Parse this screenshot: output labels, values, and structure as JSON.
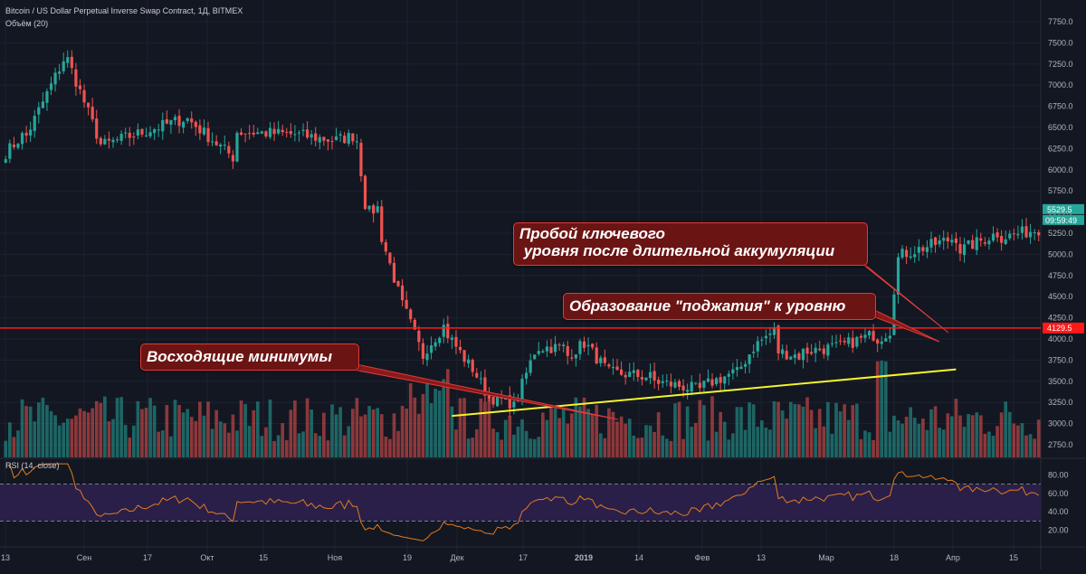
{
  "header": {
    "title": "Bitcoin / US Dollar Perpetual Inverse Swap Contract, 1Д, BITMEX",
    "volume_label": "Объём (20)",
    "rsi_label": "RSI (14, close)"
  },
  "annotations": {
    "breakout": "Пробой ключевого\n уровня после длительной аккумуляции",
    "squeeze": "Образование \"поджатия\" к уровню",
    "higher_lows": "Восходящие минимумы"
  },
  "colors": {
    "up": "#26a69a",
    "down": "#ef5350",
    "level": "#ff1a1a",
    "trend": "#f5f52a",
    "rsi_line": "#e07b1f",
    "rsi_band": "#2a1f48"
  },
  "price_axis": {
    "ticks": [
      "7750.0",
      "7500.0",
      "7250.0",
      "7000.0",
      "6750.0",
      "6500.0",
      "6250.0",
      "6000.0",
      "5750.0",
      "5500.0",
      "5250.0",
      "5000.0",
      "4750.0",
      "4500.0",
      "4250.0",
      "4000.0",
      "3750.0",
      "3500.0",
      "3250.0",
      "3000.0",
      "2750.0"
    ],
    "last_price": "5529.5",
    "countdown": "09:59:49",
    "level_tag": "4129.5"
  },
  "rsi_axis": {
    "ticks": [
      "80.00",
      "60.00",
      "40.00",
      "20.00"
    ]
  },
  "time_axis": [
    "13",
    "Сен",
    "17",
    "Окт",
    "15",
    "Ноя",
    "19",
    "Дек",
    "17",
    "2019",
    "14",
    "Фев",
    "13",
    "Мар",
    "18",
    "Апр",
    "15"
  ],
  "chart_data": {
    "type": "candlestick",
    "ylim": [
      2600,
      7900
    ],
    "key_level": 4129.5,
    "trendline": {
      "from": {
        "date": "Dec 15",
        "price": 3090
      },
      "to": {
        "date": "Apr 12",
        "price": 3640
      }
    },
    "rsi": {
      "ylim": [
        5,
        95
      ],
      "overbought": 70,
      "oversold": 30
    },
    "series": [
      {
        "name": "close",
        "segments": [
          {
            "days": 5,
            "from": 6200,
            "to": 6400
          },
          {
            "days": 10,
            "from": 6400,
            "to": 7300
          },
          {
            "days": 9,
            "from": 7300,
            "to": 6300
          },
          {
            "days": 20,
            "from": 6300,
            "to": 6600
          },
          {
            "days": 12,
            "from": 6600,
            "to": 6150
          },
          {
            "days": 14,
            "from": 6450,
            "to": 6420
          },
          {
            "days": 10,
            "from": 6420,
            "to": 6350
          },
          {
            "days": 5,
            "from": 6350,
            "to": 6400
          },
          {
            "days": 3,
            "from": 6350,
            "to": 5600
          },
          {
            "days": 3,
            "from": 5500,
            "to": 5550
          },
          {
            "days": 6,
            "from": 5200,
            "to": 4400
          },
          {
            "days": 5,
            "from": 4300,
            "to": 3800
          },
          {
            "days": 5,
            "from": 3900,
            "to": 4150
          },
          {
            "days": 6,
            "from": 4050,
            "to": 3700
          },
          {
            "days": 5,
            "from": 3650,
            "to": 3300
          },
          {
            "days": 5,
            "from": 3300,
            "to": 3250
          },
          {
            "days": 6,
            "from": 3200,
            "to": 3850
          },
          {
            "days": 7,
            "from": 3900,
            "to": 3900
          },
          {
            "days": 5,
            "from": 3800,
            "to": 3950
          },
          {
            "days": 6,
            "from": 3900,
            "to": 3600
          },
          {
            "days": 10,
            "from": 3600,
            "to": 3550
          },
          {
            "days": 12,
            "from": 3500,
            "to": 3400
          },
          {
            "days": 8,
            "from": 3450,
            "to": 3600
          },
          {
            "days": 5,
            "from": 3600,
            "to": 3900
          },
          {
            "days": 5,
            "from": 3950,
            "to": 4100
          },
          {
            "days": 6,
            "from": 3850,
            "to": 3800
          },
          {
            "days": 8,
            "from": 3850,
            "to": 3900
          },
          {
            "days": 10,
            "from": 3900,
            "to": 4050
          },
          {
            "days": 4,
            "from": 4000,
            "to": 4100
          },
          {
            "days": 2,
            "from": 4600,
            "to": 4950
          },
          {
            "days": 14,
            "from": 5000,
            "to": 5200
          },
          {
            "days": 10,
            "from": 5050,
            "to": 5250
          },
          {
            "days": 10,
            "from": 5200,
            "to": 5300
          }
        ]
      }
    ]
  }
}
